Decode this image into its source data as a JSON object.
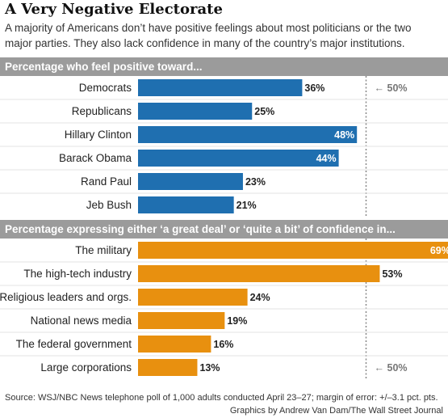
{
  "title": "A Very Negative Electorate",
  "subtitle": "A majority of Americans don’t have positive feelings about most politicians or the two major parties. They also lack confidence in many of the country’s major institutions.",
  "source": "Source: WSJ/NBC News telephone poll of 1,000 adults conducted April 23–27; margin of error: +/–3.1 pct. pts.",
  "credit": "Graphics by Andrew Van Dam/The Wall Street Journal",
  "chart_data": [
    {
      "type": "bar",
      "orientation": "horizontal",
      "title": "Percentage who feel positive toward...",
      "categories": [
        "Democrats",
        "Republicans",
        "Hillary Clinton",
        "Barack Obama",
        "Rand Paul",
        "Jeb Bush"
      ],
      "values": [
        36,
        25,
        48,
        44,
        23,
        21
      ],
      "value_labels": [
        "36%",
        "25%",
        "48%",
        "44%",
        "23%",
        "21%"
      ],
      "color": "#1f6fb0",
      "reference_line": {
        "value": 50,
        "label": "50%"
      },
      "xlim": [
        0,
        69
      ]
    },
    {
      "type": "bar",
      "orientation": "horizontal",
      "title": "Percentage expressing either ‘a great deal’ or ‘quite a bit’ of confidence in...",
      "categories": [
        "The military",
        "The high-tech industry",
        "Religious leaders and orgs.",
        "National news media",
        "The federal government",
        "Large corporations"
      ],
      "values": [
        69,
        53,
        24,
        19,
        16,
        13
      ],
      "value_labels": [
        "69%",
        "53%",
        "24%",
        "19%",
        "16%",
        "13%"
      ],
      "color": "#e8900f",
      "reference_line": {
        "value": 50,
        "label": "50%"
      },
      "xlim": [
        0,
        69
      ]
    }
  ]
}
